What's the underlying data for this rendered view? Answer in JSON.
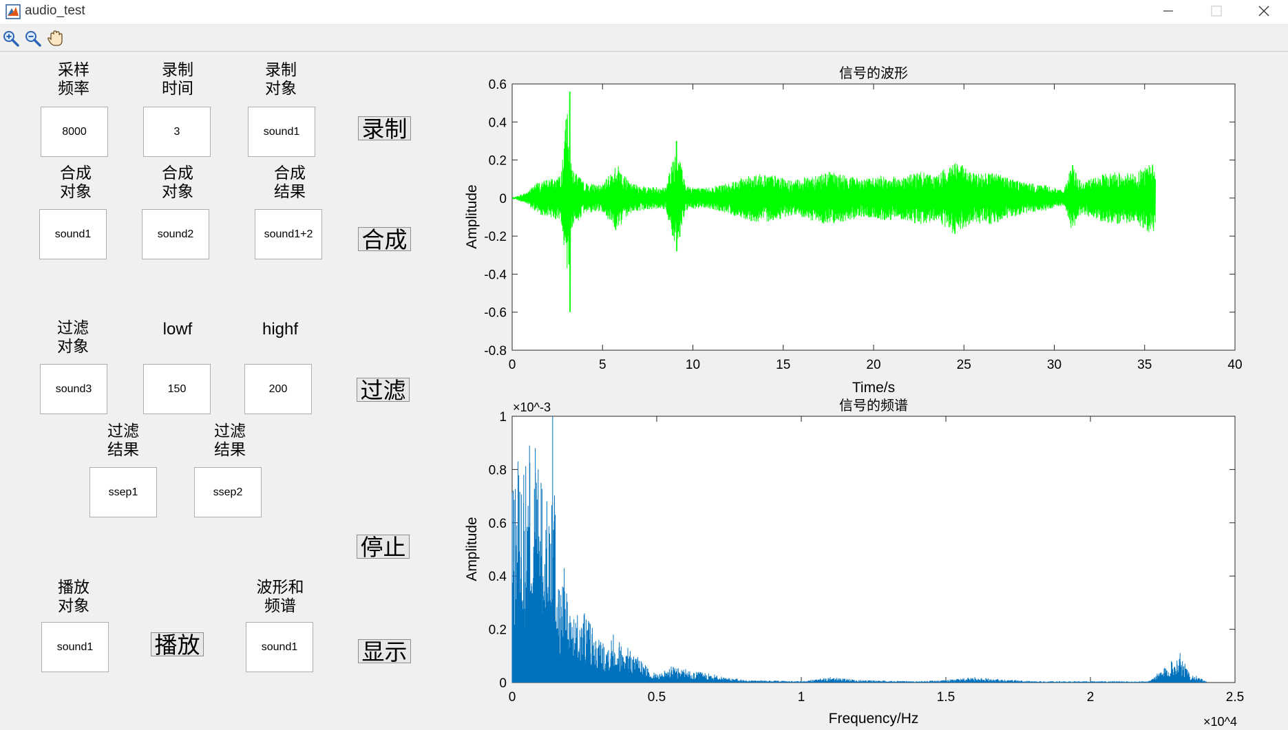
{
  "window": {
    "title": "audio_test"
  },
  "toolbar": {
    "icons": [
      "zoom-in-icon",
      "zoom-out-icon",
      "pan-hand-icon"
    ]
  },
  "record": {
    "fs_label": "采样\n频率",
    "time_label": "录制\n时间",
    "target_label": "录制\n对象",
    "fs_value": "8000",
    "time_value": "3",
    "target_value": "sound1",
    "button": "录制"
  },
  "synth": {
    "obj1_label": "合成\n对象",
    "obj2_label": "合成\n对象",
    "result_label": "合成\n结果",
    "obj1_value": "sound1",
    "obj2_value": "sound2",
    "result_value": "sound1+2",
    "button": "合成"
  },
  "filter": {
    "target_label": "过滤\n对象",
    "lowf_label": "lowf",
    "highf_label": "highf",
    "target_value": "sound3",
    "lowf_value": "150",
    "highf_value": "200",
    "result1_label": "过滤\n结果",
    "result2_label": "过滤\n结果",
    "result1_value": "ssep1",
    "result2_value": "ssep2",
    "button": "过滤"
  },
  "stop": {
    "button": "停止"
  },
  "play": {
    "target_label": "播放\n对象",
    "target_value": "sound1",
    "button": "播放"
  },
  "display": {
    "target_label": "波形和\n频谱",
    "target_value": "sound1",
    "button": "显示"
  },
  "colors": {
    "waveform": "#00ff00",
    "spectrum": "#0072bd",
    "background": "#f0f0f0"
  },
  "chart_data": [
    {
      "type": "line",
      "title": "信号的波形",
      "xlabel": "Time/s",
      "ylabel": "Amplitude",
      "xlim": [
        0,
        40
      ],
      "ylim": [
        -0.8,
        0.6
      ],
      "xticks": [
        "0",
        "5",
        "10",
        "15",
        "20",
        "25",
        "30",
        "35",
        "40"
      ],
      "yticks": [
        "0.6",
        "0.4",
        "0.2",
        "0",
        "-0.2",
        "-0.4",
        "-0.6",
        "-0.8"
      ],
      "series": [
        {
          "color": "#00ff00",
          "x": [
            0,
            0.8,
            1.3,
            2.0,
            2.7,
            3.1,
            3.2,
            3.4,
            4.0,
            5.0,
            5.8,
            6.5,
            7.5,
            8.5,
            9.1,
            9.6,
            10.5,
            11.5,
            12.5,
            13.5,
            14.5,
            15.5,
            16.5,
            17.5,
            18.5,
            19.5,
            20.5,
            21.5,
            22.5,
            23.5,
            24.5,
            25.5,
            26.5,
            27.5,
            28.5,
            29.5,
            30.5,
            31.0,
            31.5,
            32.5,
            33.5,
            34.5,
            35.2,
            35.6
          ],
          "envelope": [
            0.0,
            0.03,
            0.08,
            0.1,
            0.12,
            0.56,
            0.2,
            0.15,
            0.08,
            0.07,
            0.18,
            0.08,
            0.06,
            0.06,
            0.3,
            0.07,
            0.05,
            0.07,
            0.1,
            0.13,
            0.12,
            0.09,
            0.12,
            0.14,
            0.12,
            0.1,
            0.12,
            0.11,
            0.14,
            0.12,
            0.2,
            0.13,
            0.14,
            0.11,
            0.08,
            0.07,
            0.04,
            0.18,
            0.08,
            0.12,
            0.14,
            0.13,
            0.18,
            0.18
          ]
        }
      ]
    },
    {
      "type": "bar",
      "title": "信号的频谱",
      "xlabel": "Frequency/Hz",
      "ylabel": "Amplitude",
      "xlim": [
        0,
        25000
      ],
      "ylim": [
        0,
        0.001
      ],
      "y_multiplier": "×10^-3",
      "x_multiplier": "×10^4",
      "xticks": [
        "0",
        "0.5",
        "1",
        "1.5",
        "2",
        "2.5"
      ],
      "yticks": [
        "1",
        "0.8",
        "0.6",
        "0.4",
        "0.2",
        "0"
      ],
      "series": [
        {
          "color": "#0072bd",
          "x": [
            0,
            200,
            400,
            600,
            800,
            1000,
            1200,
            1400,
            1600,
            1800,
            2000,
            2500,
            3000,
            3500,
            4000,
            5000,
            5500,
            6000,
            6500,
            7000,
            8000,
            10000,
            11000,
            12000,
            14000,
            15000,
            16000,
            18000,
            20000,
            22000,
            22800,
            23100,
            23400,
            24000
          ],
          "values": [
            0.00071,
            0.00083,
            0.00078,
            0.00089,
            0.00088,
            0.00075,
            0.00068,
            0.001,
            0.00035,
            0.00043,
            0.00025,
            0.00026,
            0.00016,
            0.00018,
            0.00013,
            3e-05,
            6e-05,
            5e-05,
            4e-05,
            3e-05,
            1e-05,
            5e-06,
            2e-05,
            1e-05,
            5e-06,
            1e-05,
            2e-05,
            5e-06,
            5e-06,
            5e-06,
            8e-05,
            0.00011,
            4e-05,
            5e-06
          ]
        }
      ]
    }
  ]
}
